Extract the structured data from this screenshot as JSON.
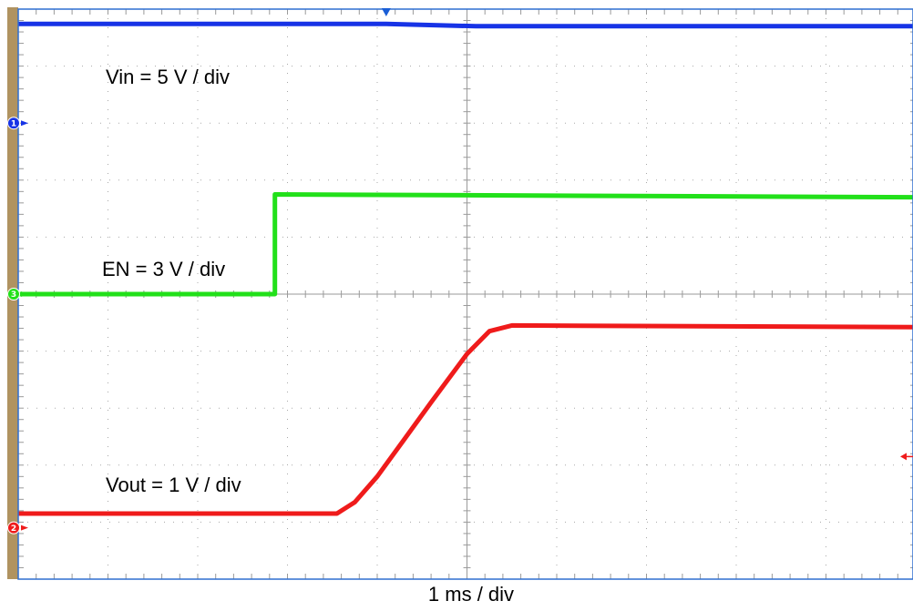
{
  "chart_data": {
    "type": "line",
    "grid": true,
    "divisions": {
      "x": 10,
      "y": 10
    },
    "x_range_div": [
      0,
      10
    ],
    "y_range_div": [
      -5,
      5
    ],
    "series": [
      {
        "label": "Vin = 5 V / div",
        "color": "#1733e6",
        "channel": "1",
        "ground_div": 3.0,
        "x": [
          0,
          4.1,
          4.1,
          5.1,
          10
        ],
        "y": [
          4.74,
          4.74,
          4.74,
          4.7,
          4.7
        ]
      },
      {
        "label": "EN = 3 V / div",
        "color": "#22e01a",
        "channel": "3",
        "ground_div": 0.0,
        "x": [
          0,
          2.86,
          2.86,
          10
        ],
        "y": [
          0.0,
          0.0,
          1.75,
          1.7
        ]
      },
      {
        "label": "Vout = 1 V / div",
        "color": "#ef1b1b",
        "channel": "2",
        "ground_div": -4.1,
        "x": [
          0,
          3.55,
          3.75,
          4.0,
          4.3,
          4.6,
          5.0,
          5.25,
          5.5,
          10
        ],
        "y": [
          -3.85,
          -3.85,
          -3.65,
          -3.2,
          -2.55,
          -1.9,
          -1.05,
          -0.65,
          -0.55,
          -0.58
        ]
      }
    ],
    "xlabel": "1 ms / div",
    "trigger_time_div": 4.1
  }
}
